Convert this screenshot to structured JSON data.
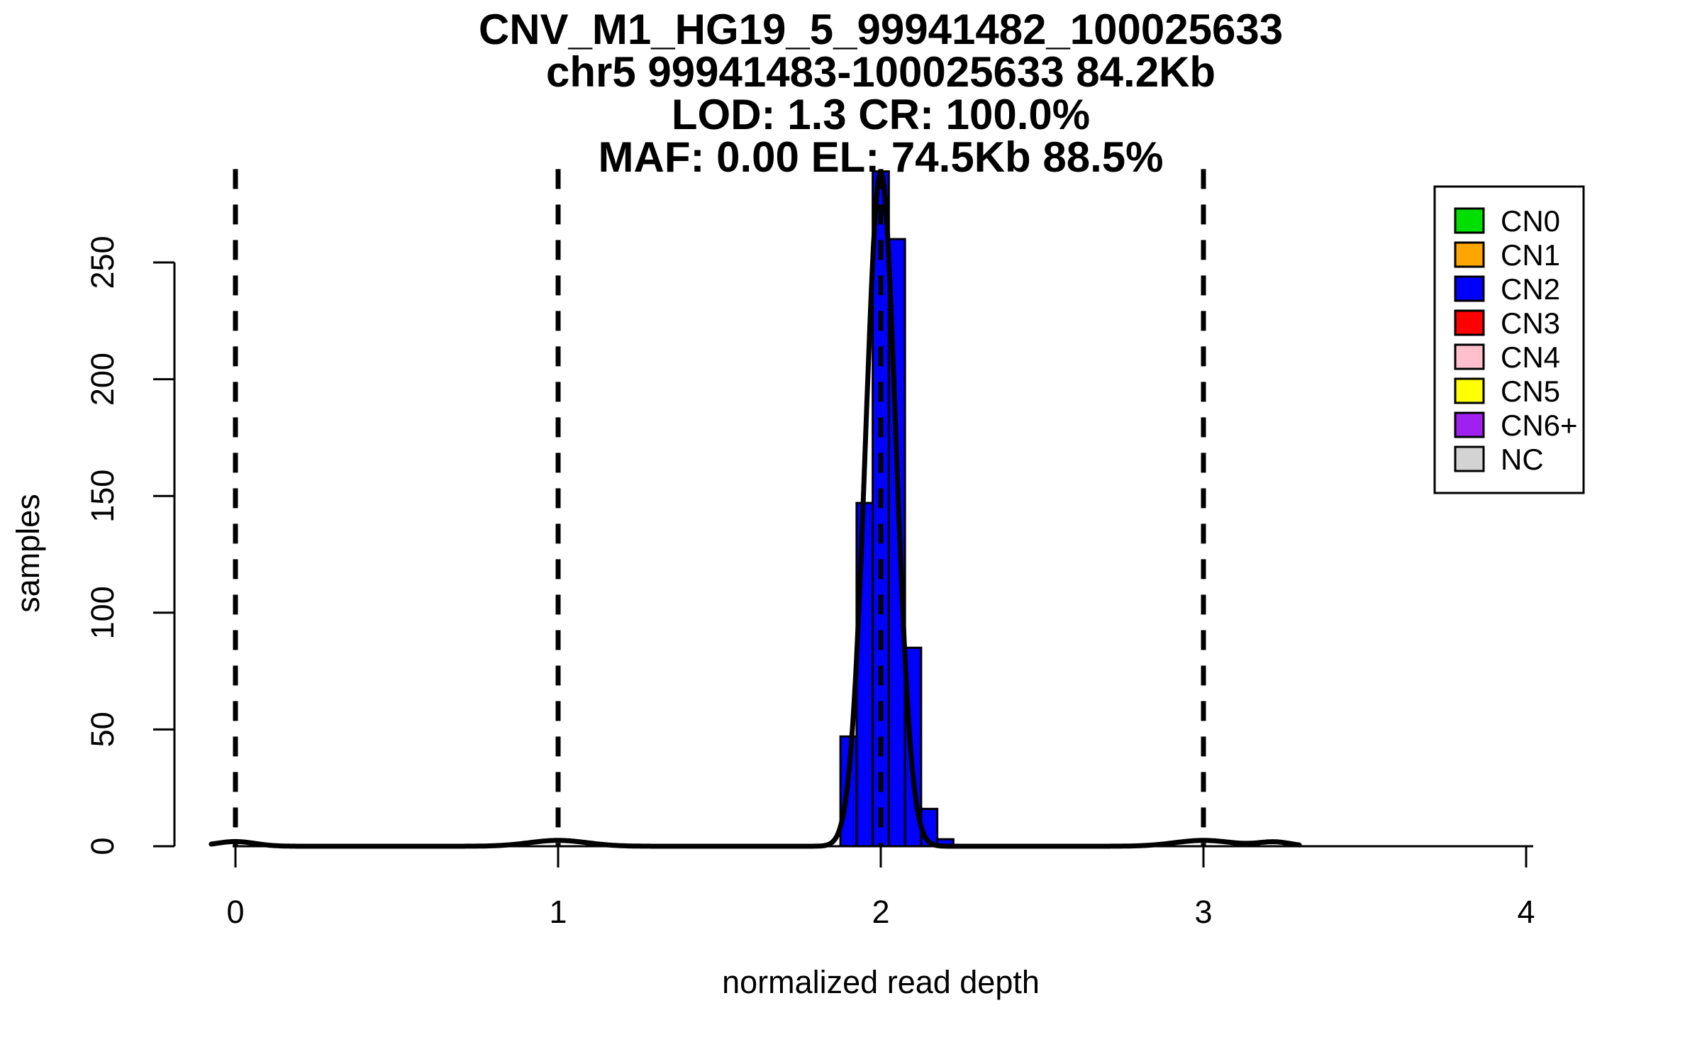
{
  "title_lines": [
    "CNV_M1_HG19_5_99941482_100025633",
    "chr5 99941483-100025633 84.2Kb",
    "LOD: 1.3 CR: 100.0%",
    "MAF: 0.00 EL: 74.5Kb 88.5%"
  ],
  "axes": {
    "x_label": "normalized read depth",
    "y_label": "samples",
    "x_ticks": [
      0,
      1,
      2,
      3,
      4
    ],
    "y_ticks": [
      0,
      50,
      100,
      150,
      200,
      250
    ]
  },
  "legend": {
    "items": [
      {
        "label": "CN0",
        "color": "#00E000"
      },
      {
        "label": "CN1",
        "color": "#FFA500"
      },
      {
        "label": "CN2",
        "color": "#0000FF"
      },
      {
        "label": "CN3",
        "color": "#FF0000"
      },
      {
        "label": "CN4",
        "color": "#FFC0CB"
      },
      {
        "label": "CN5",
        "color": "#FFFF00"
      },
      {
        "label": "CN6+",
        "color": "#A020F0"
      },
      {
        "label": "NC",
        "color": "#D3D3D3"
      }
    ]
  },
  "chart_data": {
    "type": "bar",
    "subtype": "histogram",
    "title": "CNV_M1_HG19_5_99941482_100025633",
    "xlabel": "normalized read depth",
    "ylabel": "samples",
    "xlim": [
      -0.1,
      4.1
    ],
    "ylim": [
      0,
      290
    ],
    "grid": false,
    "legend_position": "top-right",
    "bin_width": 0.05,
    "bins": [
      {
        "from": 1.875,
        "to": 1.925,
        "count": 47
      },
      {
        "from": 1.925,
        "to": 1.975,
        "count": 147
      },
      {
        "from": 1.975,
        "to": 2.025,
        "count": 289
      },
      {
        "from": 2.025,
        "to": 2.075,
        "count": 260
      },
      {
        "from": 2.075,
        "to": 2.125,
        "count": 85
      },
      {
        "from": 2.125,
        "to": 2.175,
        "count": 16
      },
      {
        "from": 2.175,
        "to": 2.225,
        "count": 3
      }
    ],
    "bar_class": "CN2",
    "bar_color": "#0000FF",
    "bar_border_color": "#000000",
    "dashed_vlines_x": [
      0,
      1,
      2,
      3
    ],
    "density_curve": {
      "color": "#000000",
      "x_range": [
        -0.075,
        3.3
      ],
      "components": [
        {
          "mu": 0.0,
          "amplitude": 2.0,
          "sigma": 0.06
        },
        {
          "mu": 1.0,
          "amplitude": 2.5,
          "sigma": 0.09
        },
        {
          "mu": 2.0,
          "amplitude": 289.0,
          "sigma": 0.047
        },
        {
          "mu": 3.0,
          "amplitude": 2.5,
          "sigma": 0.09
        },
        {
          "mu": 3.22,
          "amplitude": 1.8,
          "sigma": 0.05
        }
      ]
    }
  }
}
